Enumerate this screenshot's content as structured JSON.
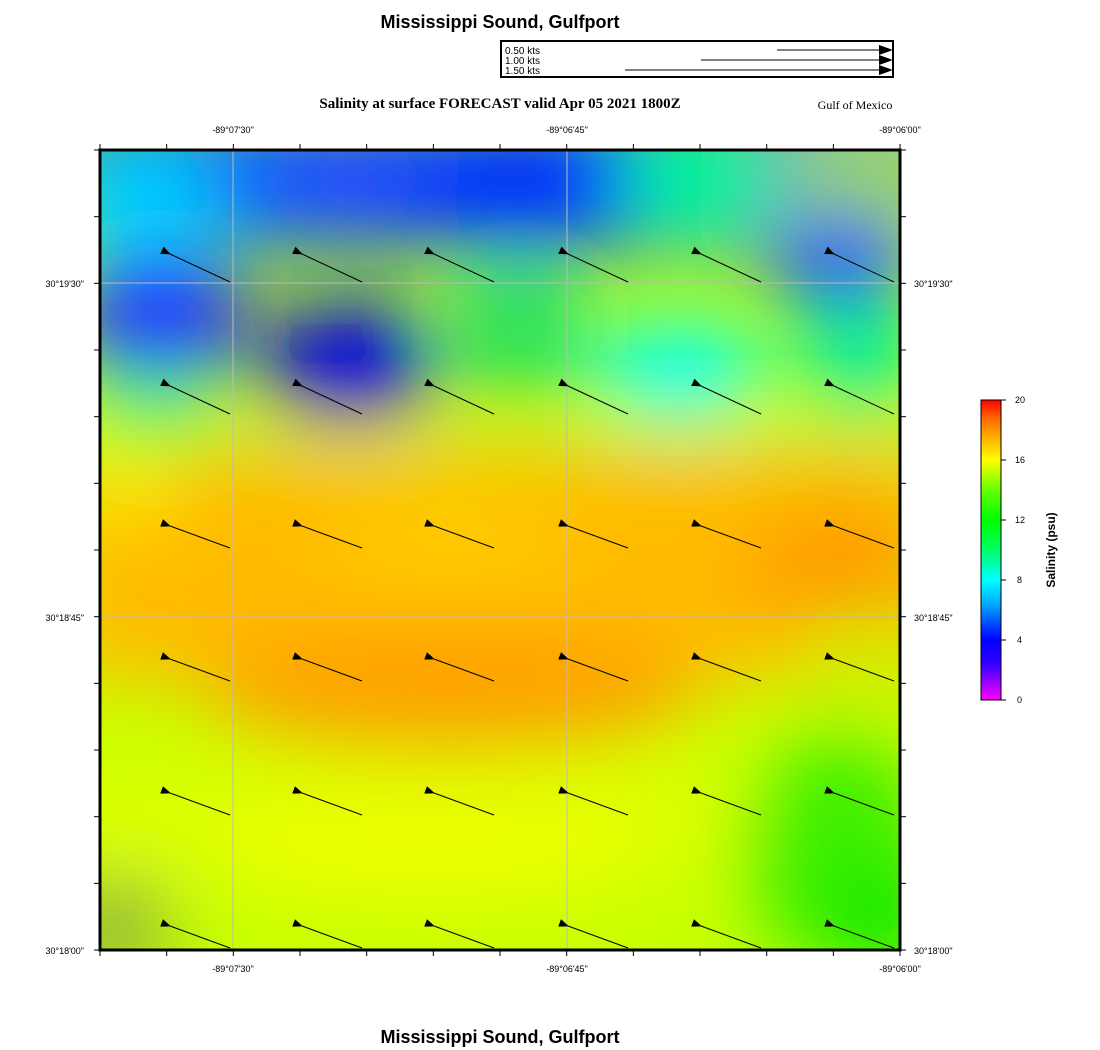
{
  "map_title_top": "Mississippi Sound, Gulfport",
  "map_title_bottom": "Mississippi Sound, Gulfport",
  "forecast_title": "Salinity at surface FORECAST valid Apr 05 2021 1800Z",
  "region_label": "Gulf of Mexico",
  "speed_legend": [
    {
      "label": "0.50 kts",
      "value": 0.5
    },
    {
      "label": "1.00 kts",
      "value": 1.0
    },
    {
      "label": "1.50 kts",
      "value": 1.5
    }
  ],
  "lon_ticks": [
    {
      "label": "-89°07'30\""
    },
    {
      "label": "-89°06'45\""
    },
    {
      "label": "-89°06'00\""
    }
  ],
  "lat_ticks": [
    {
      "label": "30°19'30\""
    },
    {
      "label": "30°18'45\""
    },
    {
      "label": "30°18'00\""
    }
  ],
  "colorbar": {
    "label": "Salinity (psu)",
    "ticks": [
      "20",
      "16",
      "12",
      "8",
      "4",
      "0"
    ],
    "min": 0,
    "max": 20
  },
  "colors": {
    "colorbar_stops": [
      "#ff00ff",
      "#3300ff",
      "#0000ff",
      "#00aaff",
      "#00ffff",
      "#00ff66",
      "#00ff00",
      "#66ff00",
      "#ffff00",
      "#ffaa00",
      "#ff6600",
      "#ff0000"
    ],
    "grid": "#bbbbbb"
  }
}
